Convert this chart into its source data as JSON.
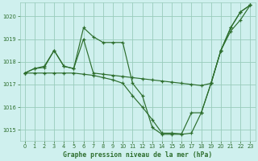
{
  "title": "Graphe pression niveau de la mer (hPa)",
  "bg_color": "#cff0ee",
  "grid_color": "#99ccbb",
  "line_color": "#2d6e2d",
  "ylim": [
    1014.5,
    1020.6
  ],
  "xlim": [
    -0.5,
    23.5
  ],
  "yticks": [
    1015,
    1016,
    1017,
    1018,
    1019,
    1020
  ],
  "xticks": [
    0,
    1,
    2,
    3,
    4,
    5,
    6,
    7,
    8,
    9,
    10,
    11,
    12,
    13,
    14,
    15,
    16,
    17,
    18,
    19,
    20,
    21,
    22,
    23
  ],
  "line1_x": [
    0,
    1,
    2,
    3,
    4,
    5,
    6,
    7,
    8,
    9,
    10,
    11,
    12,
    13,
    14,
    15,
    16,
    17,
    18,
    19,
    20,
    21,
    22,
    23
  ],
  "line1_y": [
    1017.5,
    1017.7,
    1017.8,
    1018.5,
    1017.8,
    1017.7,
    1019.5,
    1019.1,
    1018.85,
    1018.85,
    1018.85,
    1017.05,
    1016.5,
    1015.1,
    1014.8,
    1014.8,
    1014.8,
    1014.85,
    1015.75,
    1017.05,
    1018.5,
    1019.5,
    1020.2,
    1020.5
  ],
  "line2_x": [
    0,
    1,
    2,
    3,
    4,
    5,
    6,
    7,
    8,
    9,
    10,
    11,
    12,
    13,
    14,
    15,
    16,
    17,
    18,
    19,
    20,
    21,
    22,
    23
  ],
  "line2_y": [
    1017.5,
    1017.7,
    1017.75,
    1018.5,
    1017.8,
    1017.7,
    1019.0,
    1017.5,
    1017.45,
    1017.4,
    1017.35,
    1017.3,
    1017.25,
    1017.2,
    1017.15,
    1017.1,
    1017.05,
    1017.0,
    1016.95,
    1017.05,
    1018.5,
    1019.5,
    1020.2,
    1020.5
  ],
  "line3_x": [
    0,
    1,
    2,
    3,
    4,
    5,
    6,
    7,
    8,
    9,
    10,
    11,
    12,
    13,
    14,
    15,
    16,
    17,
    18,
    19,
    20,
    21,
    22,
    23
  ],
  "line3_y": [
    1017.5,
    1017.5,
    1017.5,
    1017.5,
    1017.5,
    1017.5,
    1017.45,
    1017.4,
    1017.3,
    1017.2,
    1017.05,
    1016.5,
    1016.0,
    1015.45,
    1014.85,
    1014.85,
    1014.82,
    1015.75,
    1015.75,
    1017.05,
    1018.5,
    1019.35,
    1019.85,
    1020.5
  ]
}
